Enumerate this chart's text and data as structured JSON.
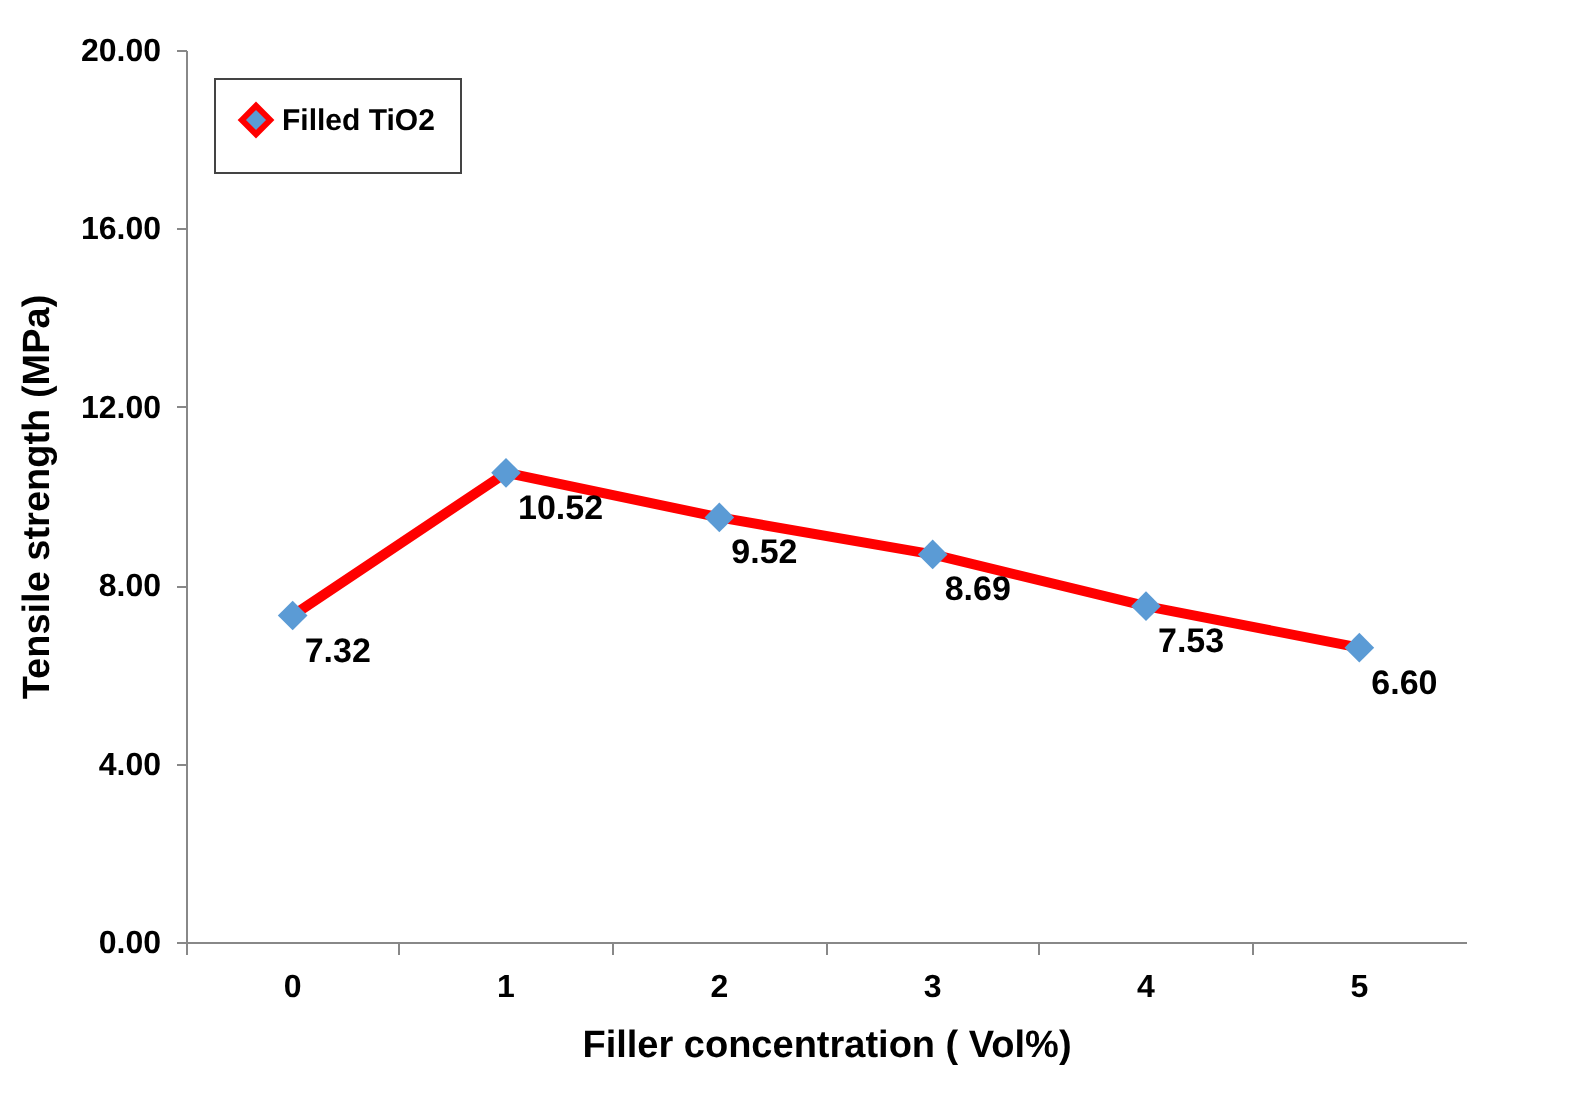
{
  "chart_data": {
    "type": "line",
    "xlabel": "Filler concentration ( Vol%)",
    "ylabel": "Tensile strength (MPa)",
    "categories": [
      "0",
      "1",
      "2",
      "3",
      "4",
      "5"
    ],
    "series": [
      {
        "name": "Filled TiO2",
        "color": "#ff0000",
        "values": [
          7.32,
          10.52,
          9.52,
          8.69,
          7.53,
          6.6
        ],
        "value_labels": [
          "7.32",
          "10.52",
          "9.52",
          "8.69",
          "7.53",
          "6.60"
        ]
      }
    ],
    "ylim": [
      0,
      20
    ],
    "yticks": [
      {
        "value": 0,
        "label": "0.00"
      },
      {
        "value": 4,
        "label": "4.00"
      },
      {
        "value": 8,
        "label": "8.00"
      },
      {
        "value": 12,
        "label": "12.00"
      },
      {
        "value": 16,
        "label": "16.00"
      },
      {
        "value": 20,
        "label": "20.00"
      }
    ],
    "marker": "diamond",
    "legend": "top left",
    "grid": false
  }
}
